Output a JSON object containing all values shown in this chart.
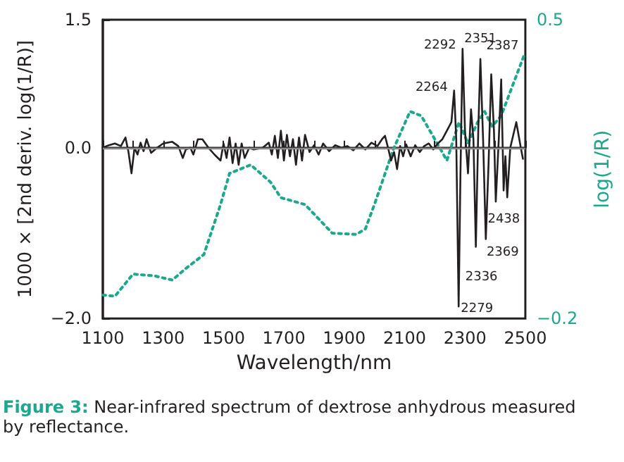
{
  "chart_data": {
    "type": "line",
    "xlabel": "Wavelength/nm",
    "ylabel": "1000 × [2nd deriv. log(1/R)]",
    "y2label": "log(1/R)",
    "xlim": [
      1100,
      2500
    ],
    "xticks": [
      1100,
      {
        "value": 1200,
        "label": null
      },
      1300,
      {
        "value": 1400,
        "label": null
      },
      1500,
      {
        "value": 1600,
        "label": null
      },
      1700,
      {
        "value": 1800,
        "label": null
      },
      1900,
      {
        "value": 2000,
        "label": null
      },
      2100,
      {
        "value": 2200,
        "label": null
      },
      2300,
      {
        "value": 2400,
        "label": null
      },
      2500
    ],
    "ylim": [
      -2.0,
      1.5
    ],
    "yticks": [
      {
        "value": -2.0,
        "label": "−2.0"
      },
      {
        "value": 0,
        "label": "0.0"
      },
      {
        "value": 1.5,
        "label": "1.5"
      }
    ],
    "y2lim": [
      -0.2,
      0.5
    ],
    "y2ticks": [
      {
        "value": -0.2,
        "label": "−0.2"
      },
      {
        "value": 0.5,
        "label": "0.5"
      }
    ],
    "marker": "none",
    "ref_lines": [
      {
        "axis": "y",
        "value": 0,
        "label": null,
        "color": "#888888"
      }
    ],
    "series": [
      {
        "color": "#231f20",
        "line_style": "solid",
        "x": [
          1100,
          1120,
          1140,
          1160,
          1175,
          1185,
          1195,
          1205,
          1215,
          1225,
          1235,
          1245,
          1260,
          1280,
          1300,
          1330,
          1350,
          1365,
          1375,
          1390,
          1400,
          1415,
          1430,
          1450,
          1470,
          1490,
          1500,
          1510,
          1520,
          1530,
          1540,
          1550,
          1560,
          1570,
          1585,
          1600,
          1630,
          1650,
          1660,
          1670,
          1680,
          1690,
          1700,
          1710,
          1720,
          1730,
          1740,
          1750,
          1760,
          1770,
          1785,
          1800,
          1815,
          1830,
          1850,
          1870,
          1890,
          1910,
          1930,
          1950,
          1970,
          1990,
          2010,
          2025,
          2035,
          2045,
          2055,
          2065,
          2075,
          2085,
          2095,
          2105,
          2120,
          2135,
          2150,
          2165,
          2180,
          2195,
          2210,
          2225,
          2240,
          2255,
          2264,
          2271,
          2279,
          2285,
          2292,
          2300,
          2310,
          2320,
          2328,
          2336,
          2344,
          2351,
          2360,
          2369,
          2378,
          2387,
          2396,
          2402,
          2412,
          2420,
          2428,
          2434,
          2440,
          2450,
          2470,
          2485,
          2492
        ],
        "values": [
          0,
          0.03,
          0.05,
          0.02,
          0.12,
          -0.05,
          -0.3,
          0,
          -0.08,
          0.06,
          -0.04,
          0.1,
          -0.06,
          0,
          0.05,
          0.07,
          0.02,
          -0.12,
          -0.02,
          0,
          -0.08,
          0.1,
          0.1,
          0,
          -0.08,
          -0.15,
          0.05,
          -0.12,
          0.12,
          -0.18,
          0.05,
          -0.2,
          0.05,
          -0.12,
          0,
          -0.02,
          0,
          0.06,
          -0.08,
          0.14,
          -0.12,
          0.2,
          -0.15,
          0.15,
          -0.1,
          0.1,
          -0.2,
          0.12,
          -0.15,
          0.15,
          -0.05,
          0.03,
          -0.08,
          0.05,
          -0.04,
          0.03,
          0,
          0.02,
          -0.03,
          0.05,
          -0.02,
          0.06,
          0.02,
          0.1,
          0.14,
          0,
          -0.15,
          -0.05,
          -0.25,
          0.02,
          -0.1,
          0.04,
          -0.1,
          0.03,
          -0.05,
          0.02,
          0.05,
          -0.02,
          0.05,
          0.1,
          0.2,
          0.3,
          0.67,
          0.1,
          -1.86,
          -0.3,
          1.16,
          0.2,
          -0.3,
          0.45,
          0.1,
          -1.16,
          0.2,
          1.04,
          0.1,
          -1.07,
          -0.2,
          0.86,
          0.2,
          -0.63,
          0.1,
          0.8,
          -0.5,
          -0.1,
          -0.58,
          0,
          0.3,
          0,
          -0.13
        ]
      },
      {
        "color": "#1aa88e",
        "line_style": "dotted",
        "axis": "y2",
        "x": [
          1100,
          1140,
          1200,
          1270,
          1330,
          1375,
          1435,
          1490,
          1520,
          1590,
          1655,
          1690,
          1770,
          1860,
          1940,
          1970,
          2000,
          2063,
          2118,
          2155,
          2200,
          2240,
          2280,
          2310,
          2342,
          2365,
          2390,
          2420,
          2460,
          2495
        ],
        "values": [
          -0.145,
          -0.148,
          -0.096,
          -0.1,
          -0.11,
          -0.083,
          -0.05,
          0.067,
          0.14,
          0.16,
          0.12,
          0.083,
          0.067,
          0,
          -0.003,
          0.01,
          0.067,
          0.197,
          0.285,
          0.275,
          0.22,
          0.17,
          0.26,
          0.21,
          0.26,
          0.285,
          0.25,
          0.275,
          0.35,
          0.415
        ]
      }
    ],
    "annotations": [
      {
        "text": "2264",
        "x": 2264,
        "y": 0.67
      },
      {
        "text": "2292",
        "x": 2292,
        "y": 1.16
      },
      {
        "text": "2351",
        "x": 2351,
        "y": 1.04
      },
      {
        "text": "2387",
        "x": 2387,
        "y": 0.86
      },
      {
        "text": "2279",
        "x": 2279,
        "y": -1.86
      },
      {
        "text": "2336",
        "x": 2336,
        "y": -1.16
      },
      {
        "text": "2369",
        "x": 2369,
        "y": -1.07
      },
      {
        "text": "2438",
        "x": 2438,
        "y": -0.55
      },
      "Figure 3: Near-infrared spectrum of dextrose anhydrous measured by reflectance."
    ]
  }
}
